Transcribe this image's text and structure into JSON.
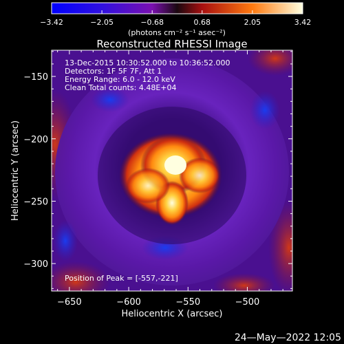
{
  "chart_data": {
    "type": "heatmap",
    "title": "Reconstructed RHESSI Image",
    "xlabel": "Heliocentric X (arcsec)",
    "ylabel": "Heliocentric Y (arcsec)",
    "xlim": [
      -665,
      -462
    ],
    "ylim": [
      -322,
      -129
    ],
    "x_ticks": [
      -650,
      -600,
      -550,
      -500
    ],
    "x_tick_labels": [
      "−650",
      "−600",
      "−550",
      "−500"
    ],
    "y_ticks": [
      -150,
      -200,
      -250,
      -300
    ],
    "y_tick_labels": [
      "−150",
      "−200",
      "−250",
      "−300"
    ],
    "colorbar": {
      "min": -3.42,
      "max": 3.42,
      "ticks": [
        -3.42,
        -2.05,
        -0.68,
        0.68,
        2.05,
        3.42
      ],
      "tick_labels": [
        "−3.42",
        "−2.05",
        "−0.68",
        "0.68",
        "2.05",
        "3.42"
      ],
      "units": "(photons cm⁻² s⁻¹ asec⁻²)"
    },
    "annotations": [
      "13-Dec-2015 10:30:52.000 to 10:36:52.000",
      "Detectors: 1F 5F 7F, Att 1",
      "Energy Range: 6.0 - 12.0 keV",
      "Clean    Total counts: 4.48E+04"
    ],
    "peak_label": "Position of Peak = [-557,-221]",
    "peak": [
      -557,
      -221
    ],
    "colors": {
      "background": "#000000",
      "ring": "#5a18a8",
      "negative": "#1a3cf0",
      "positive": "#c83010",
      "peak": "#ffffe0"
    }
  },
  "timestamp": "24—May—2022 12:05"
}
